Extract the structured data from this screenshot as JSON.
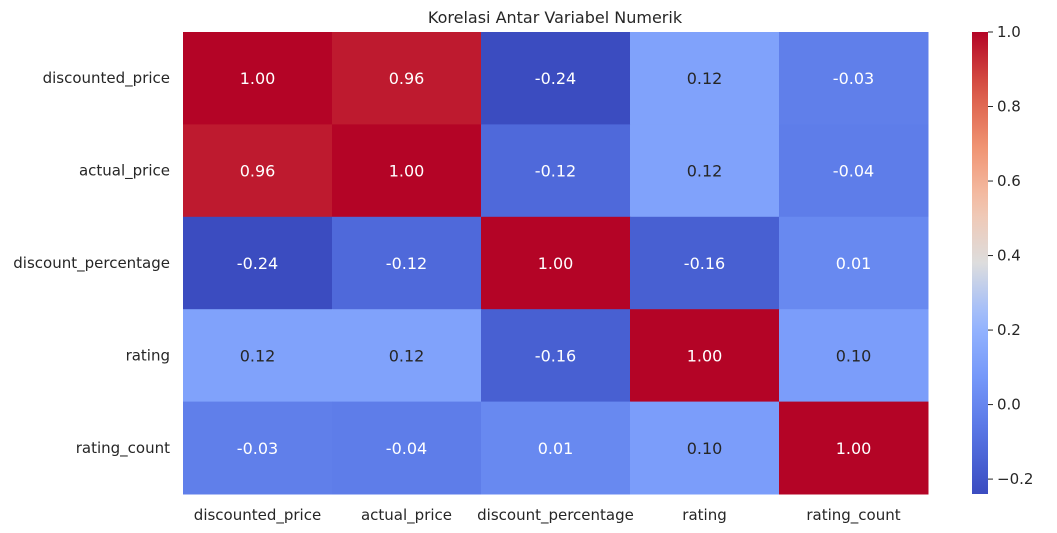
{
  "chart_data": {
    "type": "heatmap",
    "title": "Korelasi Antar Variabel Numerik",
    "xlabel": "",
    "ylabel": "",
    "colormap": "coolwarm",
    "x_categories": [
      "discounted_price",
      "actual_price",
      "discount_percentage",
      "rating",
      "rating_count"
    ],
    "y_categories": [
      "discounted_price",
      "actual_price",
      "discount_percentage",
      "rating",
      "rating_count"
    ],
    "values": [
      [
        1.0,
        0.96,
        -0.24,
        0.12,
        -0.03
      ],
      [
        0.96,
        1.0,
        -0.12,
        0.12,
        -0.04
      ],
      [
        -0.24,
        -0.12,
        1.0,
        -0.16,
        0.01
      ],
      [
        0.12,
        0.12,
        -0.16,
        1.0,
        0.1
      ],
      [
        -0.03,
        -0.04,
        0.01,
        0.1,
        1.0
      ]
    ],
    "annotations": [
      [
        "1.00",
        "0.96",
        "-0.24",
        "0.12",
        "-0.03"
      ],
      [
        "0.96",
        "1.00",
        "-0.12",
        "0.12",
        "-0.04"
      ],
      [
        "-0.24",
        "-0.12",
        "1.00",
        "-0.16",
        "0.01"
      ],
      [
        "0.12",
        "0.12",
        "-0.16",
        "1.00",
        "0.10"
      ],
      [
        "-0.03",
        "-0.04",
        "0.01",
        "0.10",
        "1.00"
      ]
    ],
    "colorbar": {
      "range": [
        -0.24,
        1.0
      ],
      "ticks": [
        -0.2,
        0.0,
        0.2,
        0.4,
        0.6,
        0.8,
        1.0
      ],
      "tick_labels": [
        "−0.2",
        "0.0",
        "0.2",
        "0.4",
        "0.6",
        "0.8",
        "1.0"
      ]
    },
    "grid": false,
    "legend": "colorbar-right"
  }
}
